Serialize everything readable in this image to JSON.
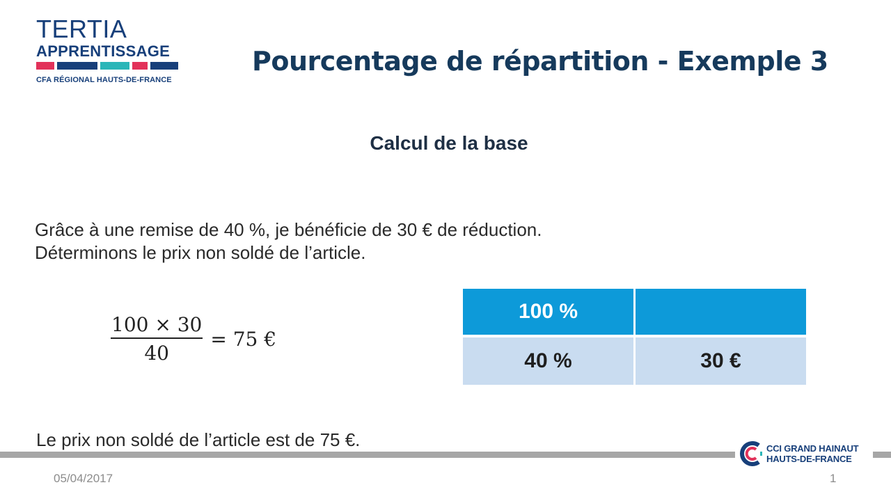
{
  "logo": {
    "line1": "TERTIA",
    "line2": "APPRENTISSAGE",
    "line3": "CFA RÉGIONAL HAUTS-DE-FRANCE",
    "bar_colors": [
      "#e2325a",
      "#173f7a",
      "#2bb6b8",
      "#e2325a",
      "#173f7a"
    ]
  },
  "title": "Pourcentage de répartition - Exemple 3",
  "subtitle": "Calcul de la base",
  "paragraph": {
    "line1": "Grâce à une remise de 40 %, je bénéficie de 30 € de réduction.",
    "line2": "Déterminons le prix non soldé de l’article."
  },
  "formula": {
    "numerator": "100 × 30",
    "denominator": "40",
    "result": "= 75 €"
  },
  "table": {
    "rows": [
      [
        "100 %",
        ""
      ],
      [
        "40 %",
        "30 €"
      ]
    ],
    "header_color": "#0d9ad9",
    "row_color": "#c9dcf0"
  },
  "conclusion": "Le prix non soldé de l’article est de 75 €.",
  "footer": {
    "date": "05/04/2017",
    "page": "1",
    "cci_line1": "CCI GRAND HAINAUT",
    "cci_line2": "HAUTS-DE-FRANCE"
  }
}
